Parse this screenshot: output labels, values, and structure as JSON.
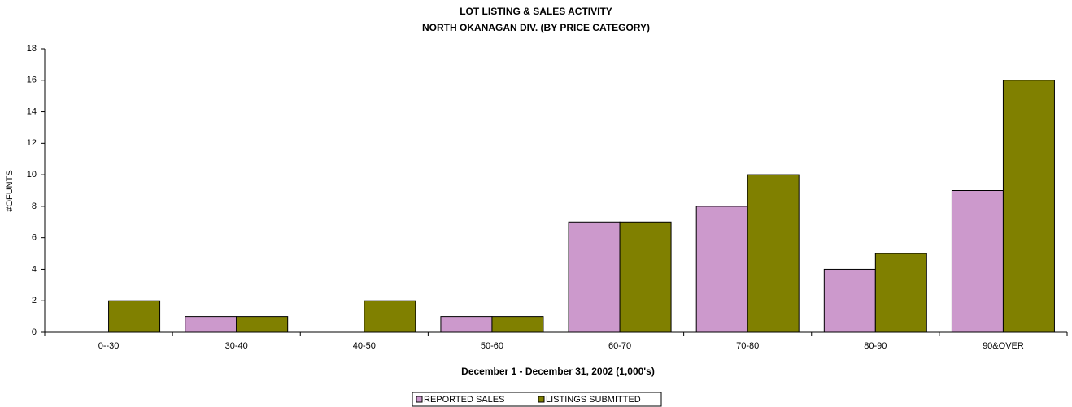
{
  "chart_data": {
    "type": "bar",
    "title": "LOT LISTING & SALES ACTIVITY",
    "subtitle": "NORTH OKANAGAN DIV. (BY PRICE CATEGORY)",
    "x_label": "December 1 - December 31, 2002 (1,000's)",
    "y_label": "#OFUNTS",
    "categories": [
      "0--30",
      "30-40",
      "40-50",
      "50-60",
      "60-70",
      "70-80",
      "80-90",
      "90&OVER"
    ],
    "series": [
      {
        "name": "REPORTED SALES",
        "color": "#cc99cc",
        "values": [
          0,
          1,
          0,
          1,
          7,
          8,
          4,
          9
        ]
      },
      {
        "name": "LISTINGS SUBMITTED",
        "color": "#808000",
        "values": [
          2,
          1,
          2,
          1,
          7,
          10,
          5,
          16
        ]
      }
    ],
    "ylim": [
      0,
      18
    ],
    "yticks": [
      0,
      2,
      4,
      6,
      8,
      10,
      12,
      14,
      16,
      18
    ],
    "grid": false,
    "legend": "bottom"
  }
}
